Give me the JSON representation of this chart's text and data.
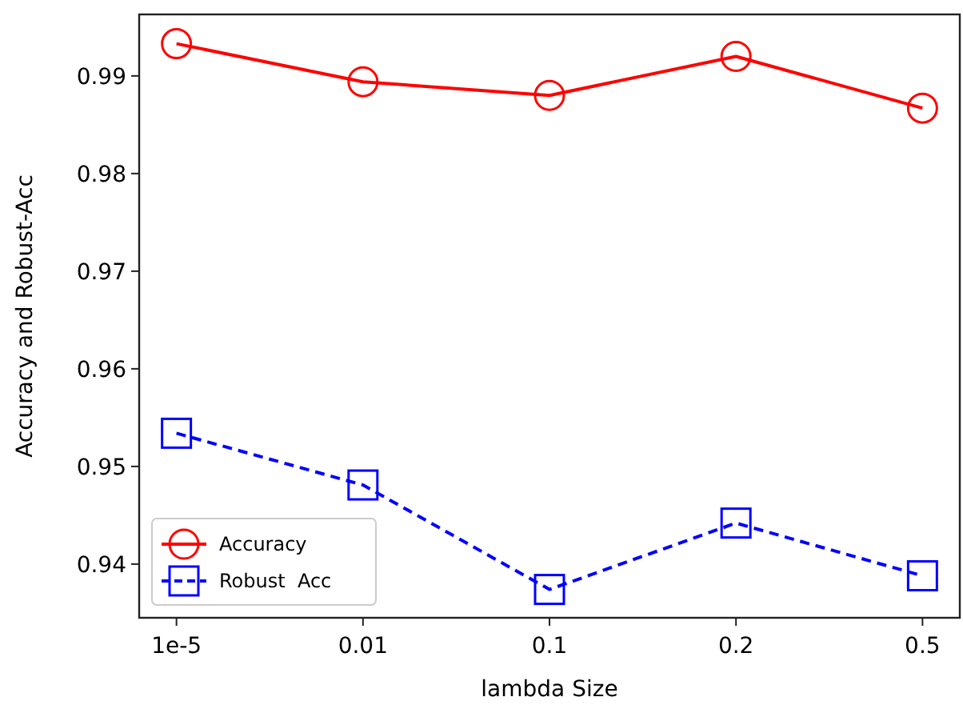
{
  "chart_data": {
    "type": "line",
    "xlabel": "lambda Size",
    "ylabel": "Accuracy and Robust-Acc",
    "categories": [
      "1e-5",
      "0.01",
      "0.1",
      "0.2",
      "0.5"
    ],
    "series": [
      {
        "name": "Accuracy",
        "color": "#ff0000",
        "values": [
          0.9933,
          0.9894,
          0.988,
          0.992,
          0.9867
        ],
        "marker": "circle",
        "line_style": "solid"
      },
      {
        "name": "Robust  Acc",
        "color": "#0000ff",
        "values": [
          0.9534,
          0.9481,
          0.9374,
          0.9442,
          0.9388
        ],
        "marker": "square",
        "line_style": "dashed"
      }
    ],
    "ylim": [
      0.9345,
      0.9963
    ],
    "yticks": [
      0.94,
      0.95,
      0.96,
      0.97,
      0.98,
      0.99
    ],
    "legend": "bottom left",
    "grid": false
  }
}
